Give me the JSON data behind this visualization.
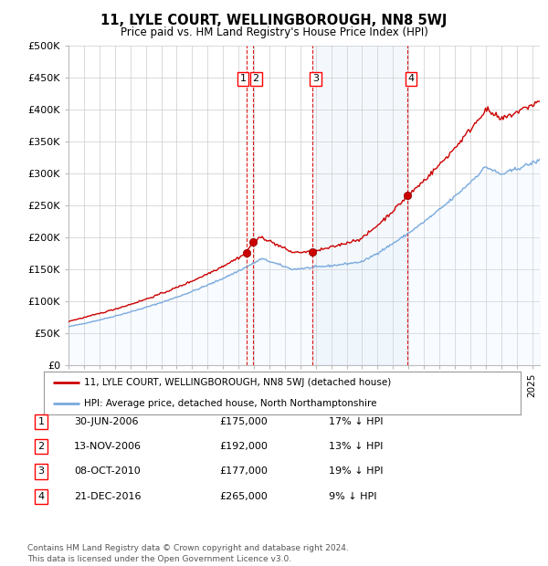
{
  "title": "11, LYLE COURT, WELLINGBOROUGH, NN8 5WJ",
  "subtitle": "Price paid vs. HM Land Registry's House Price Index (HPI)",
  "ylabel_ticks": [
    "£0",
    "£50K",
    "£100K",
    "£150K",
    "£200K",
    "£250K",
    "£300K",
    "£350K",
    "£400K",
    "£450K",
    "£500K"
  ],
  "ytick_values": [
    0,
    50000,
    100000,
    150000,
    200000,
    250000,
    300000,
    350000,
    400000,
    450000,
    500000
  ],
  "ylim": [
    0,
    500000
  ],
  "sale_year_decimals": [
    2006.5,
    2006.917,
    2010.792,
    2016.958
  ],
  "sale_prices": [
    175000,
    192000,
    177000,
    265000
  ],
  "sale_labels": [
    "1",
    "2",
    "3",
    "4"
  ],
  "legend_label_red": "11, LYLE COURT, WELLINGBOROUGH, NN8 5WJ (detached house)",
  "legend_label_blue": "HPI: Average price, detached house, North Northamptonshire",
  "table_entries": [
    {
      "label": "1",
      "date": "30-JUN-2006",
      "price": "£175,000",
      "hpi": "17% ↓ HPI"
    },
    {
      "label": "2",
      "date": "13-NOV-2006",
      "price": "£192,000",
      "hpi": "13% ↓ HPI"
    },
    {
      "label": "3",
      "date": "08-OCT-2010",
      "price": "£177,000",
      "hpi": "19% ↓ HPI"
    },
    {
      "label": "4",
      "date": "21-DEC-2016",
      "price": "£265,000",
      "hpi": "9% ↓ HPI"
    }
  ],
  "footer": "Contains HM Land Registry data © Crown copyright and database right 2024.\nThis data is licensed under the Open Government Licence v3.0.",
  "line_color_red": "#cc0000",
  "line_color_blue": "#7aaadd",
  "shade_color": "#ddeeff",
  "background_color": "#ffffff",
  "grid_color": "#cccccc",
  "vline_color": "#dd0000",
  "xlim_start": 1995,
  "xlim_end": 2025.5
}
